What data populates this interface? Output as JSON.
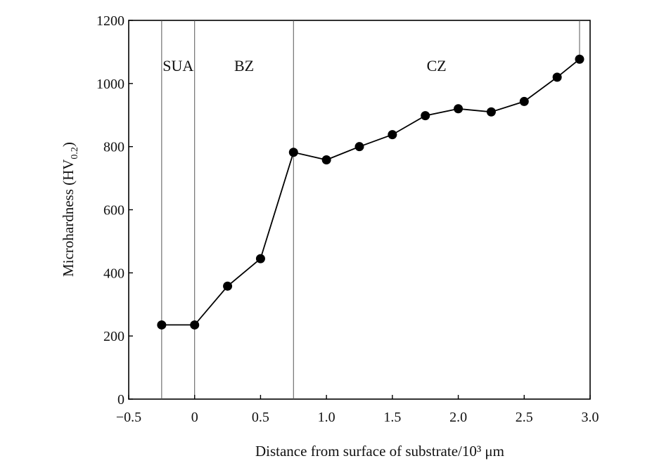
{
  "chart_data": {
    "type": "line",
    "xlabel": "Distance from surface of substrate/10³ μm",
    "ylabel": "Microhardness (HV",
    "ylabel_sub": "0.2",
    "ylabel_close": ")",
    "xlim": [
      -0.5,
      3.0
    ],
    "ylim": [
      0,
      1200
    ],
    "xticks": [
      -0.5,
      0,
      0.5,
      1.0,
      1.5,
      2.0,
      2.5,
      3.0
    ],
    "xtick_labels": [
      "−0.5",
      "0",
      "0.5",
      "1.0",
      "1.5",
      "2.0",
      "2.5",
      "3.0"
    ],
    "yticks": [
      0,
      200,
      400,
      600,
      800,
      1000,
      1200
    ],
    "ytick_labels": [
      "0",
      "200",
      "400",
      "600",
      "800",
      "1000",
      "1200"
    ],
    "grid": false,
    "series": [
      {
        "marker": "filled-circle",
        "color": "#000000",
        "points": [
          {
            "x": -0.25,
            "y": 235
          },
          {
            "x": 0.0,
            "y": 235
          },
          {
            "x": 0.25,
            "y": 358
          },
          {
            "x": 0.5,
            "y": 445
          },
          {
            "x": 0.75,
            "y": 782
          },
          {
            "x": 1.0,
            "y": 758
          },
          {
            "x": 1.25,
            "y": 800
          },
          {
            "x": 1.5,
            "y": 838
          },
          {
            "x": 1.75,
            "y": 898
          },
          {
            "x": 2.0,
            "y": 920
          },
          {
            "x": 2.25,
            "y": 910
          },
          {
            "x": 2.5,
            "y": 943
          },
          {
            "x": 2.75,
            "y": 1020
          },
          {
            "x": 2.92,
            "y": 1077
          }
        ]
      }
    ],
    "regions": [
      {
        "label": "SUA",
        "boundary_x": -0.25
      },
      {
        "label": "BZ",
        "boundary_x": 0.0
      },
      {
        "label": "CZ",
        "boundary_x": 0.75
      }
    ],
    "end_boundary_x": 2.92
  }
}
